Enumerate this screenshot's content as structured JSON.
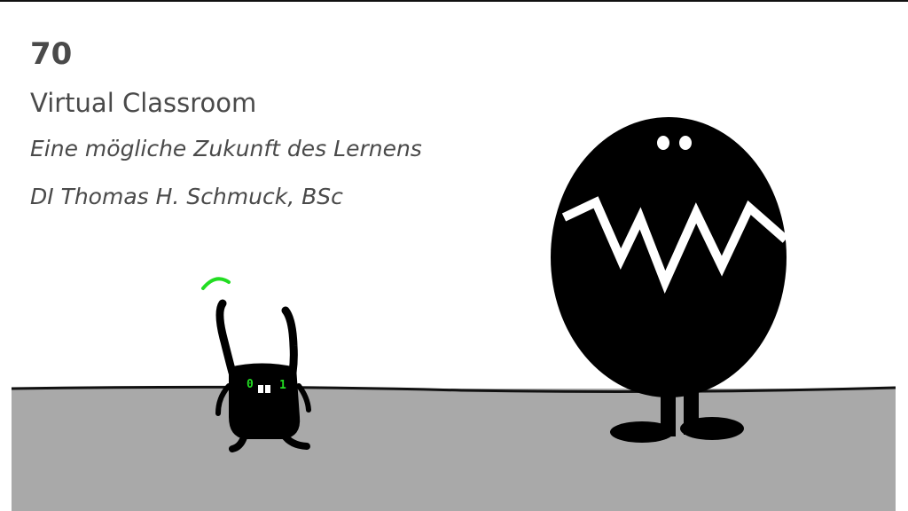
{
  "slide": {
    "episode_number": "70",
    "title": "Virtual Classroom",
    "subtitle": "Eine mögliche Zukunft des Lernens",
    "author": "DI Thomas H. Schmuck, BSc"
  },
  "robot": {
    "display_left": "0",
    "display_right": "1",
    "accent_color": "#22dd22"
  },
  "colors": {
    "ground": "#a9a9a9",
    "text": "#4a4a4a",
    "figure": "#000000"
  }
}
